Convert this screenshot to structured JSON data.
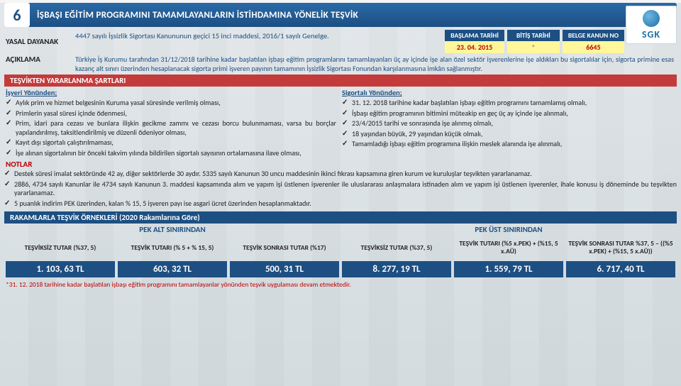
{
  "header": {
    "number": "6",
    "title": "İŞBAŞI EĞİTİM PROGRAMINI TAMAMLAYANLARIN İSTİHDAMINA YÖNELİK TEŞVİK"
  },
  "logo": "SGK",
  "yasal": {
    "label": "YASAL DAYANAK",
    "text": "4447 sayılı İşsizlik Sigortası Kanununun geçici 15 inci maddesi, 2016/1 sayılı Genelge."
  },
  "dates": {
    "cols": [
      {
        "h": "BAŞLAMA TARİHİ",
        "v": "23. 04. 2015"
      },
      {
        "h": "BİTİŞ TARİHİ",
        "v": "*"
      },
      {
        "h": "BELGE KANUN NO",
        "v": "6645"
      }
    ]
  },
  "aciklama": {
    "label": "AÇIKLAMA",
    "text": "Türkiye İş Kurumu tarafından 31/12/2018 tarihine kadar başlatılan işbaşı eğitim programlarını tamamlayanları üç ay içinde işe alan özel sektör işverenlerine işe aldıkları bu sigortalılar için, sigorta primine esas kazanç alt sınırı üzerinden hesaplanacak sigorta primi işveren payının tamamının İşsizlik Sigortası Fonundan karşılanmasına imkân sağlanmıştır."
  },
  "sartlar": {
    "title": "TEŞVİKTEN YARARLANMA ŞARTLARI",
    "left": {
      "h": "İşyeri Yönünden;",
      "items": [
        "Aylık prim ve hizmet belgesinin Kuruma yasal süresinde verilmiş olması,",
        "Primlerin yasal süresi içinde ödenmesi,",
        "Prim, idari para cezası ve bunlara ilişkin gecikme zammı ve cezası borcu bulunmaması, varsa bu borçlar yapılandırılmış, taksitlendirilmiş ve düzenli ödeniyor olması,",
        "Kayıt dışı sigortalı çalıştırılmaması,",
        "İşe alınan sigortalının bir önceki takvim yılında bildirilen sigortalı sayısının ortalamasına ilave olması,"
      ]
    },
    "right": {
      "h": "Sigortalı Yönünden;",
      "items": [
        "31. 12. 2018 tarihine kadar başlatılan işbaşı eğitim programını tamamlamış olmalı,",
        "İşbaşı eğitim programının bitimini müteakip en geç üç ay içinde işe alınmalı,",
        "23/4/2015 tarihi ve sonrasında işe alınmış olmalı,",
        "18 yaşından büyük, 29 yaşından küçük olmalı,",
        "Tamamladığı işbaşı eğitim programına ilişkin meslek alanında işe alınmalı,"
      ]
    }
  },
  "notlar": {
    "title": "NOTLAR",
    "items": [
      "Destek süresi imalat sektöründe 42 ay, diğer sektörlerde 30 aydır. 5335 sayılı Kanunun 30 uncu maddesinin ikinci fıkrası kapsamına giren kurum ve kuruluşlar teşvikten yararlanamaz.",
      "2886, 4734 sayılı Kanunlar ile 4734 sayılı Kanunun 3. maddesi kapsamında alım ve yapım işi üstlenen işverenler ile uluslararası anlaşmalara istinaden alım ve yapım işi üstlenen işverenler, ihale konusu iş döneminde bu teşvikten yararlanamaz.",
      "5 puanlık indirim PEK üzerinden, kalan % 15, 5 işveren payı ise asgari ücret üzerinden hesaplanmaktadır."
    ]
  },
  "rakam": {
    "title": "RAKAMLARLA TEŞVİK ÖRNEKLERİ  (2020 Rakamlarına Göre)",
    "pek": {
      "left": "PEK ALT SINIRINDAN",
      "right": "PEK ÜST SINIRINDAN"
    },
    "cells": [
      {
        "h": "TEŞVİKSİZ TUTAR (%37, 5)",
        "v": "1. 103, 63 TL"
      },
      {
        "h": "TEŞVİK TUTARI (% 5 + % 15, 5)",
        "v": "603, 32 TL"
      },
      {
        "h": "TEŞVİK SONRASI TUTAR (%17)",
        "v": "500, 31 TL"
      },
      {
        "h": "TEŞVİKSİZ TUTAR (%37, 5)",
        "v": "8. 277, 19 TL"
      },
      {
        "h": "TEŞVİK TUTARI (%5 x.PEK) + (%15, 5 x.AÜ)",
        "v": "1. 559, 79 TL"
      },
      {
        "h": "TEŞVİK SONRASI TUTAR %37, 5 – ((%5 x.PEK) + (%15, 5 x.AÜ))",
        "v": "6. 717, 40 TL"
      }
    ]
  },
  "footnote": "*31. 12. 2018 tarihine kadar başlatılan işbaşı eğitim programını tamamlayanlar yönünden teşvik uygulaması devam etmektedir."
}
